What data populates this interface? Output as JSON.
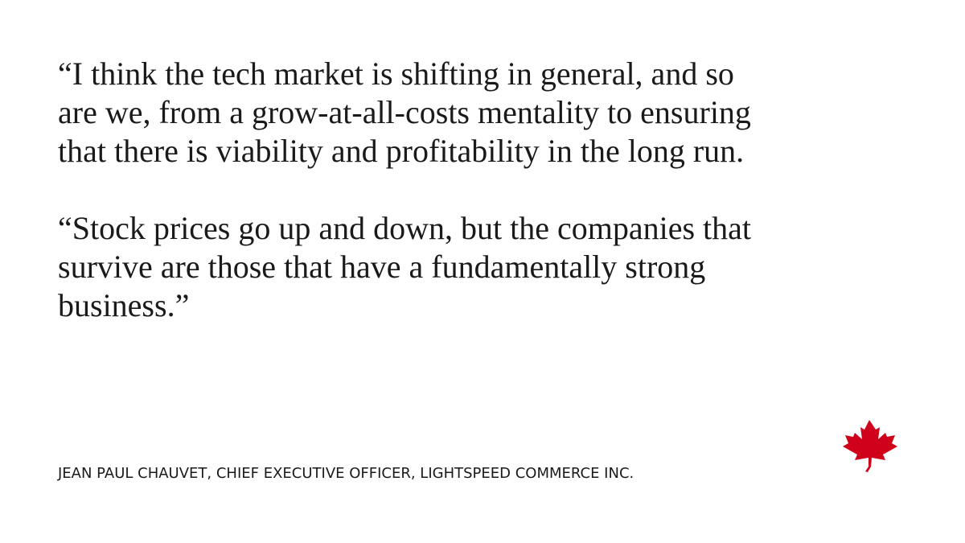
{
  "quote": {
    "paragraphs": [
      "“I think the tech market is shifting in general, and so\nare we, from a grow-at-all-costs mentality to ensuring\nthat there is viability and profitability in the long run.",
      "“Stock prices go up and down, but the companies that\nsurvive are those that have a fundamentally strong\nbusiness.”"
    ]
  },
  "attribution": "JEAN PAUL CHAUVET, CHIEF EXECUTIVE OFFICER, LIGHTSPEED COMMERCE INC.",
  "logo": {
    "icon": "maple-leaf-icon",
    "color": "#d0021b"
  }
}
